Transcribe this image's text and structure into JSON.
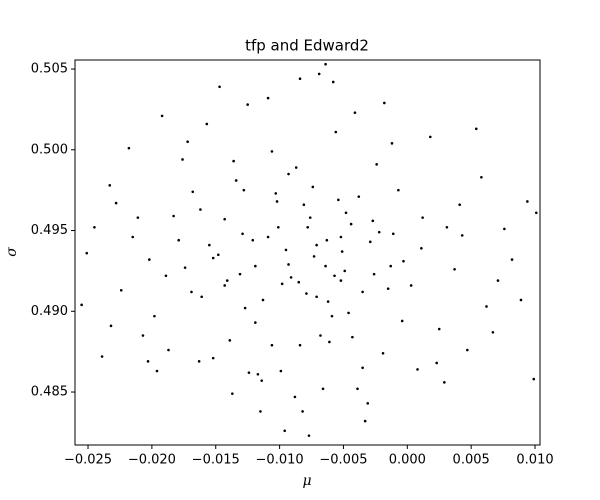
{
  "chart_data": {
    "type": "scatter",
    "title": "tfp and Edward2",
    "x_label": "μ",
    "y_label": "σ",
    "color": "#000000",
    "xlim": [
      -0.02602,
      0.01039
    ],
    "ylim": [
      0.48172,
      0.50556
    ],
    "xticks": [
      {
        "value": -0.025,
        "label": "−0.025"
      },
      {
        "value": -0.02,
        "label": "−0.020"
      },
      {
        "value": -0.015,
        "label": "−0.015"
      },
      {
        "value": -0.01,
        "label": "−0.010"
      },
      {
        "value": -0.005,
        "label": "−0.005"
      },
      {
        "value": 0,
        "label": "0.000"
      },
      0.005,
      {
        "value": 0.01,
        "label": "0.010"
      }
    ],
    "yticks": [
      0.485,
      {
        "value": 0.49,
        "label": "0.490"
      },
      0.495,
      {
        "value": 0.5,
        "label": "0.500"
      },
      0.505
    ],
    "x": [
      -0.0071,
      -0.0102,
      -0.0035,
      -0.0148,
      0.0012,
      -0.0189,
      -0.0056,
      -0.0084,
      0.0043,
      -0.0127,
      -0.0093,
      -0.0019,
      -0.0162,
      -0.0064,
      0.0071,
      -0.0215,
      -0.0117,
      -0.0041,
      -0.0078,
      -0.0136,
      0.0025,
      -0.0051,
      -0.0198,
      -0.0109,
      -0.0027,
      -0.0233,
      -0.0085,
      0.0058,
      -0.0152,
      -0.0003,
      -0.0121,
      -0.0066,
      -0.0174,
      0.0094,
      -0.0046,
      -0.0098,
      -0.0251,
      -0.0012,
      -0.0139,
      -0.0081,
      -0.0058,
      0.0037,
      -0.0183,
      -0.0114,
      -0.0029,
      -0.0207,
      -0.0071,
      0.0008,
      -0.0157,
      -0.0095,
      -0.0038,
      -0.0129,
      0.0062,
      -0.0224,
      -0.0088,
      -0.0049,
      -0.0168,
      -0.0015,
      -0.0106,
      -0.0061,
      0.0018,
      -0.0143,
      -0.0076,
      -0.0192,
      -0.0033,
      0.0082,
      -0.0119,
      -0.0054,
      -0.0239,
      -0.0091,
      -0.0022,
      -0.0163,
      -0.0069,
      0.0047,
      -0.0134,
      -0.0101,
      -0.0211,
      -0.0043,
      -0.0007,
      -0.0082,
      -0.0176,
      -0.0113,
      0.0031,
      -0.0059,
      -0.0255,
      -0.0026,
      -0.0147,
      -0.0073,
      0.0099,
      -0.0124,
      -0.0048,
      -0.0202,
      -0.0096,
      0.0011,
      -0.0155,
      -0.0064,
      -0.0035,
      -0.0187,
      0.0054,
      -0.0109,
      -0.0079,
      -0.0018,
      -0.0131,
      -0.0228,
      0.0076,
      -0.0052,
      -0.0169,
      -0.0087,
      -0.0004,
      -0.0115,
      -0.0143,
      0.0023,
      -0.0062,
      -0.0196,
      -0.0103,
      -0.0031,
      0.0089,
      -0.0245,
      -0.0074,
      -0.0152,
      -0.0044,
      -0.0125,
      -0.0011,
      -0.0179,
      0.0041,
      -0.0068,
      -0.0218,
      -0.0093,
      -0.0137,
      0.0003,
      -0.0057,
      -0.0106,
      0.0067,
      -0.0161,
      -0.0024,
      -0.0084,
      -0.0203,
      0.0101,
      -0.0039,
      -0.0128,
      -0.0099,
      -0.0013,
      -0.0172,
      -0.0052,
      0.0029,
      -0.0141,
      -0.0232,
      -0.0077,
      -0.0119,
      -0.0063
    ],
    "values": [
      0.4941,
      0.4968,
      0.4912,
      0.4935,
      0.4958,
      0.4922,
      0.5011,
      0.4879,
      0.4947,
      0.4902,
      0.4985,
      0.4874,
      0.4963,
      0.4928,
      0.4919,
      0.4946,
      0.4861,
      0.5023,
      0.4952,
      0.4993,
      0.4889,
      0.4937,
      0.4897,
      0.5032,
      0.4956,
      0.4978,
      0.4918,
      0.4983,
      0.4871,
      0.4931,
      0.4944,
      0.4852,
      0.4927,
      0.4968,
      0.4899,
      0.4917,
      0.4936,
      0.5004,
      0.4882,
      0.4966,
      0.5042,
      0.4926,
      0.4959,
      0.4857,
      0.4943,
      0.4885,
      0.4909,
      0.4864,
      0.5016,
      0.4938,
      0.4971,
      0.4948,
      0.4903,
      0.4913,
      0.4847,
      0.4925,
      0.4974,
      0.4914,
      0.4999,
      0.4881,
      0.5008,
      0.4916,
      0.4958,
      0.5021,
      0.4832,
      0.4932,
      0.4893,
      0.4969,
      0.4872,
      0.4921,
      0.4949,
      0.4869,
      0.5047,
      0.4876,
      0.4981,
      0.4952,
      0.4958,
      0.4884,
      0.4975,
      0.4838,
      0.4994,
      0.4907,
      0.4952,
      0.4897,
      0.4904,
      0.4923,
      0.5039,
      0.4934,
      0.4858,
      0.4862,
      0.4961,
      0.4932,
      0.4826,
      0.4939,
      0.4941,
      0.5053,
      0.4865,
      0.4876,
      0.5013,
      0.4946,
      0.4911,
      0.5029,
      0.4923,
      0.4967,
      0.4951,
      0.4946,
      0.4912,
      0.4989,
      0.4894,
      0.4838,
      0.4957,
      0.4868,
      0.4906,
      0.4863,
      0.4973,
      0.4843,
      0.4907,
      0.4952,
      0.4977,
      0.4933,
      0.4954,
      0.5028,
      0.4948,
      0.4944,
      0.4966,
      0.4885,
      0.5001,
      0.4929,
      0.4849,
      0.4916,
      0.4922,
      0.4879,
      0.4887,
      0.4909,
      0.4991,
      0.5044,
      0.4869,
      0.4961,
      0.4852,
      0.4975,
      0.4863,
      0.4928,
      0.5005,
      0.4919,
      0.4856,
      0.4919,
      0.4891,
      0.4823,
      0.4928,
      0.4944
    ]
  }
}
